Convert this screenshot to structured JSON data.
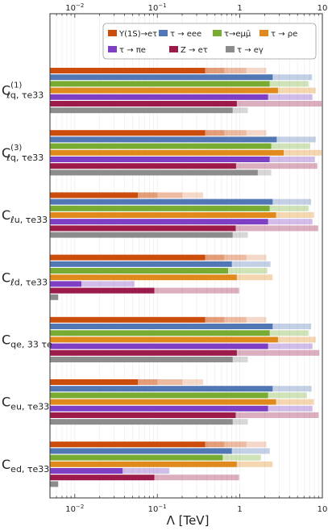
{
  "chart_data": {
    "type": "bar",
    "orientation": "horizontal",
    "xscale": "log",
    "xlim": [
      0.005,
      10
    ],
    "xticks": [
      {
        "value": 0.01,
        "base": "10",
        "exp": "−2"
      },
      {
        "value": 0.1,
        "base": "10",
        "exp": "−1"
      },
      {
        "value": 1,
        "base": "1",
        "exp": ""
      },
      {
        "value": 10,
        "base": "10",
        "exp": ""
      }
    ],
    "xlabel": "Λ [TeV]",
    "grid": true,
    "legend_position": "top-right",
    "colors": {
      "upsilon": "#cc4c0b",
      "eee": "#5277b5",
      "emumu": "#77ab32",
      "rhoe": "#e08a1e",
      "pie": "#7f3fc4",
      "Zetau": "#9c1b4a",
      "egamma": "#8c8c8c"
    },
    "series": [
      {
        "key": "upsilon",
        "name": "Υ(1S)→eτ"
      },
      {
        "key": "eee",
        "name": "τ → eee"
      },
      {
        "key": "emumu",
        "name": "τ→eμμ̄"
      },
      {
        "key": "rhoe",
        "name": "τ → ρe"
      },
      {
        "key": "pie",
        "name": "τ → πe"
      },
      {
        "key": "Zetau",
        "name": "Z → eτ"
      },
      {
        "key": "egamma",
        "name": "τ → eγ"
      }
    ],
    "groups": [
      {
        "label_main": "C",
        "label_sup": "(1)",
        "label_sub": "ℓq, τe33",
        "bars": [
          {
            "series": "upsilon",
            "value": 0.38,
            "projections": [
              0.65,
              1.2,
              2.1
            ]
          },
          {
            "series": "eee",
            "value": 2.5,
            "projections": [
              7.5
            ]
          },
          {
            "series": "emumu",
            "value": 2.3,
            "projections": [
              6.8
            ]
          },
          {
            "series": "rhoe",
            "value": 2.9,
            "projections": [
              8.3
            ]
          },
          {
            "series": "pie",
            "value": 2.2,
            "projections": [
              7.6
            ]
          },
          {
            "series": "Zetau",
            "value": 0.92,
            "projections": [
              9.8
            ]
          },
          {
            "series": "egamma",
            "value": 0.82,
            "projections": [
              1.25
            ]
          }
        ]
      },
      {
        "label_main": "C",
        "label_sup": "(3)",
        "label_sub": "ℓq, τe33",
        "bars": [
          {
            "series": "upsilon",
            "value": 0.38,
            "projections": [
              0.65,
              1.2,
              2.1
            ]
          },
          {
            "series": "eee",
            "value": 2.8,
            "projections": [
              8.3
            ]
          },
          {
            "series": "emumu",
            "value": 2.4,
            "projections": [
              7.1
            ]
          },
          {
            "series": "rhoe",
            "value": 3.4,
            "projections": [
              9.8
            ]
          },
          {
            "series": "pie",
            "value": 2.3,
            "projections": [
              8.1
            ]
          },
          {
            "series": "Zetau",
            "value": 0.9,
            "projections": [
              8.7
            ]
          },
          {
            "series": "egamma",
            "value": 1.65,
            "projections": [
              2.4
            ]
          }
        ]
      },
      {
        "label_main": "C",
        "label_sup": "",
        "label_sub": "ℓu, τe33",
        "bars": [
          {
            "series": "upsilon",
            "value": 0.058,
            "projections": [
              0.1,
              0.2,
              0.36
            ]
          },
          {
            "series": "eee",
            "value": 2.5,
            "projections": [
              7.3
            ]
          },
          {
            "series": "emumu",
            "value": 2.3,
            "projections": [
              6.8
            ]
          },
          {
            "series": "rhoe",
            "value": 2.75,
            "projections": [
              7.9
            ]
          },
          {
            "series": "pie",
            "value": 2.2,
            "projections": [
              7.6
            ]
          },
          {
            "series": "Zetau",
            "value": 0.89,
            "projections": [
              8.9
            ]
          },
          {
            "series": "egamma",
            "value": 0.82,
            "projections": [
              1.25
            ]
          }
        ]
      },
      {
        "label_main": "C",
        "label_sup": "",
        "label_sub": "ℓd, τe33",
        "bars": [
          {
            "series": "upsilon",
            "value": 0.38,
            "projections": [
              0.65,
              1.2,
              2.1
            ]
          },
          {
            "series": "eee",
            "value": 0.8,
            "projections": [
              2.35
            ]
          },
          {
            "series": "emumu",
            "value": 0.72,
            "projections": [
              2.15
            ]
          },
          {
            "series": "rhoe",
            "value": 0.92,
            "projections": [
              2.5
            ]
          },
          {
            "series": "pie",
            "value": 0.012,
            "projections": [
              0.053
            ]
          },
          {
            "series": "Zetau",
            "value": 0.092,
            "projections": [
              0.98
            ]
          },
          {
            "series": "egamma",
            "value": 0.0063,
            "projections": []
          }
        ]
      },
      {
        "label_main": "C",
        "label_sup": "",
        "label_sub": "qe, 33 τe",
        "bars": [
          {
            "series": "upsilon",
            "value": 0.38,
            "projections": [
              0.65,
              1.2,
              2.1
            ]
          },
          {
            "series": "eee",
            "value": 2.5,
            "projections": [
              7.3
            ]
          },
          {
            "series": "emumu",
            "value": 2.3,
            "projections": [
              6.8
            ]
          },
          {
            "series": "rhoe",
            "value": 2.9,
            "projections": [
              8.3
            ]
          },
          {
            "series": "pie",
            "value": 2.2,
            "projections": [
              7.6
            ]
          },
          {
            "series": "Zetau",
            "value": 0.92,
            "projections": [
              9.2
            ]
          },
          {
            "series": "egamma",
            "value": 0.82,
            "projections": [
              1.25
            ]
          }
        ]
      },
      {
        "label_main": "C",
        "label_sup": "",
        "label_sub": "eu, τe33",
        "bars": [
          {
            "series": "upsilon",
            "value": 0.058,
            "projections": [
              0.1,
              0.2,
              0.36
            ]
          },
          {
            "series": "eee",
            "value": 2.5,
            "projections": [
              7.4
            ]
          },
          {
            "series": "emumu",
            "value": 2.2,
            "projections": [
              6.5
            ]
          },
          {
            "series": "rhoe",
            "value": 2.75,
            "projections": [
              7.9
            ]
          },
          {
            "series": "pie",
            "value": 2.2,
            "projections": [
              7.6
            ]
          },
          {
            "series": "Zetau",
            "value": 0.89,
            "projections": [
              9.0
            ]
          },
          {
            "series": "egamma",
            "value": 0.82,
            "projections": [
              1.25
            ]
          }
        ]
      },
      {
        "label_main": "C",
        "label_sup": "",
        "label_sub": "ed, τe33",
        "bars": [
          {
            "series": "upsilon",
            "value": 0.38,
            "projections": [
              0.65,
              1.2,
              2.1
            ]
          },
          {
            "series": "eee",
            "value": 0.8,
            "projections": [
              2.3
            ]
          },
          {
            "series": "emumu",
            "value": 0.62,
            "projections": [
              1.8
            ]
          },
          {
            "series": "rhoe",
            "value": 0.92,
            "projections": [
              2.5
            ]
          },
          {
            "series": "pie",
            "value": 0.038,
            "projections": [
              0.14
            ]
          },
          {
            "series": "Zetau",
            "value": 0.092,
            "projections": [
              0.98
            ]
          },
          {
            "series": "egamma",
            "value": 0.0063,
            "projections": []
          }
        ]
      }
    ]
  }
}
